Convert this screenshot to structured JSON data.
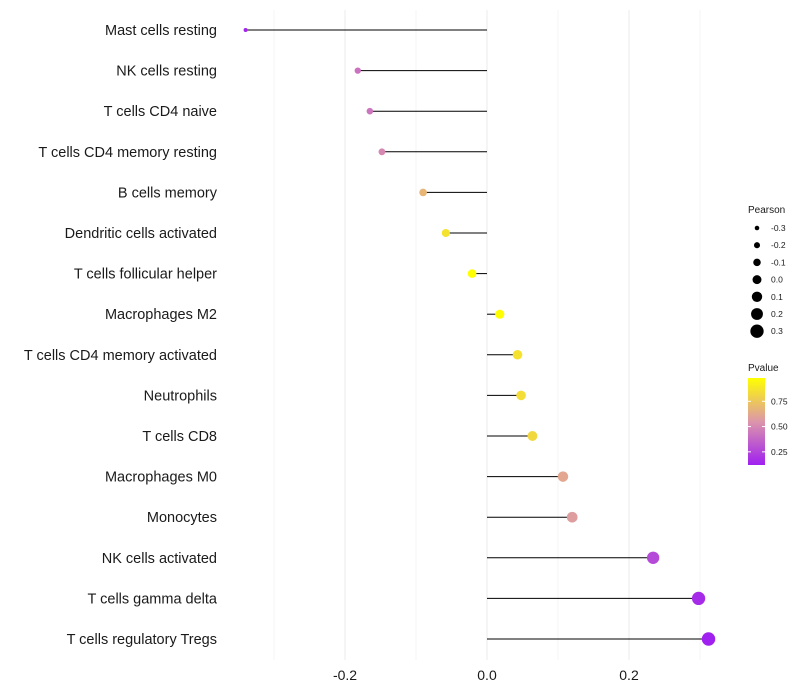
{
  "chart_data": {
    "type": "lollipop",
    "title": "",
    "xlabel": "",
    "ylabel": "",
    "xlim": [
      -0.36,
      0.33
    ],
    "x_ticks": [
      -0.2,
      0.0,
      0.2
    ],
    "x_tick_labels": [
      "-0.2",
      "0.0",
      "0.2"
    ],
    "grid": true,
    "categories": [
      "Mast cells resting",
      "NK cells resting",
      "T cells CD4 naive",
      "T cells CD4 memory resting",
      "B cells memory",
      "Dendritic cells activated",
      "T cells follicular helper",
      "Macrophages M2",
      "T cells CD4 memory activated",
      "Neutrophils",
      "T cells CD8",
      "Macrophages M0",
      "Monocytes",
      "NK cells activated",
      "T cells gamma delta",
      "T cells regulatory  Tregs"
    ],
    "values": [
      -0.34,
      -0.182,
      -0.165,
      -0.148,
      -0.09,
      -0.058,
      -0.021,
      0.018,
      0.043,
      0.048,
      0.064,
      0.107,
      0.12,
      0.234,
      0.298,
      0.312
    ],
    "pvalues": [
      0.14,
      0.42,
      0.43,
      0.5,
      0.68,
      0.86,
      0.98,
      0.98,
      0.86,
      0.84,
      0.82,
      0.62,
      0.58,
      0.27,
      0.16,
      0.12
    ],
    "legend": {
      "position": "right",
      "size": {
        "title": "Pearson",
        "entries": [
          -0.3,
          -0.2,
          -0.1,
          0.0,
          0.1,
          0.2,
          0.3
        ],
        "labels": [
          "-0.3",
          "-0.2",
          "-0.1",
          "0.0",
          "0.1",
          "0.2",
          "0.3"
        ]
      },
      "color": {
        "title": "Pvalue",
        "labels": [
          "0.75",
          "0.50",
          "0.25"
        ],
        "label_values": [
          0.75,
          0.5,
          0.25
        ],
        "range": [
          0.12,
          0.98
        ],
        "low_color": "#a020f0",
        "high_color": "#ffff00"
      }
    }
  }
}
